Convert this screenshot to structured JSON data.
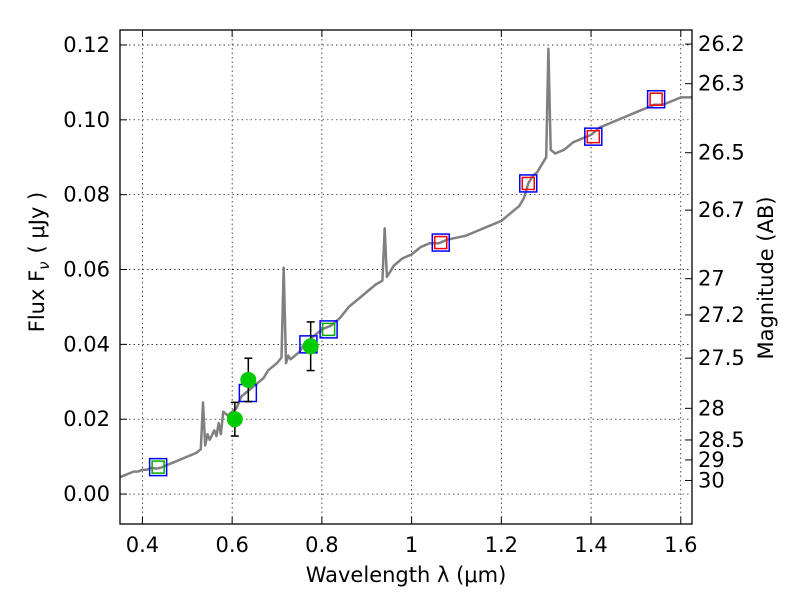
{
  "chart_data": {
    "type": "scatter",
    "xlabel": "Wavelength  λ (μm)",
    "ylabel": "Flux  F",
    "ylabel_sub": "ν",
    "ylabel_unit": "( μJy )",
    "y2label": "Magnitude (AB)",
    "xlim": [
      0.35,
      1.625
    ],
    "ylim": [
      -0.008,
      0.124
    ],
    "grid": true,
    "x_ticks": [
      {
        "value": 0.4,
        "label": "0.4"
      },
      {
        "value": 0.6,
        "label": "0.6"
      },
      {
        "value": 0.8,
        "label": "0.8"
      },
      {
        "value": 1.0,
        "label": "1"
      },
      {
        "value": 1.2,
        "label": "1.2"
      },
      {
        "value": 1.4,
        "label": "1.4"
      },
      {
        "value": 1.6,
        "label": "1.6"
      }
    ],
    "y_ticks": [
      {
        "value": 0.0,
        "label": "0.00"
      },
      {
        "value": 0.02,
        "label": "0.02"
      },
      {
        "value": 0.04,
        "label": "0.04"
      },
      {
        "value": 0.06,
        "label": "0.06"
      },
      {
        "value": 0.08,
        "label": "0.08"
      },
      {
        "value": 0.1,
        "label": "0.10"
      },
      {
        "value": 0.12,
        "label": "0.12"
      }
    ],
    "mag_ticks": [
      {
        "value": 26.2,
        "label": "26.2"
      },
      {
        "value": 26.3,
        "label": "26.3"
      },
      {
        "value": 26.5,
        "label": "26.5"
      },
      {
        "value": 26.7,
        "label": "26.7"
      },
      {
        "value": 27.0,
        "label": "27"
      },
      {
        "value": 27.2,
        "label": "27.2"
      },
      {
        "value": 27.5,
        "label": "27.5"
      },
      {
        "value": 28.0,
        "label": "28"
      },
      {
        "value": 28.5,
        "label": "28.5"
      },
      {
        "value": 29.0,
        "label": "29"
      },
      {
        "value": 30.0,
        "label": "30"
      }
    ],
    "series": [
      {
        "name": "model spectrum",
        "kind": "line",
        "color": "#808080",
        "x": [
          0.35,
          0.36,
          0.37,
          0.38,
          0.39,
          0.4,
          0.41,
          0.42,
          0.43,
          0.44,
          0.45,
          0.46,
          0.47,
          0.48,
          0.49,
          0.5,
          0.51,
          0.52,
          0.53,
          0.535,
          0.54,
          0.545,
          0.55,
          0.56,
          0.565,
          0.57,
          0.575,
          0.58,
          0.59,
          0.6,
          0.61,
          0.62,
          0.63,
          0.64,
          0.65,
          0.66,
          0.67,
          0.68,
          0.69,
          0.7,
          0.71,
          0.715,
          0.72,
          0.725,
          0.73,
          0.74,
          0.75,
          0.76,
          0.77,
          0.78,
          0.79,
          0.8,
          0.82,
          0.84,
          0.86,
          0.88,
          0.9,
          0.92,
          0.935,
          0.94,
          0.945,
          0.95,
          0.96,
          0.97,
          0.98,
          1.0,
          1.02,
          1.04,
          1.06,
          1.08,
          1.1,
          1.12,
          1.14,
          1.16,
          1.18,
          1.2,
          1.22,
          1.24,
          1.25,
          1.26,
          1.27,
          1.28,
          1.29,
          1.3,
          1.305,
          1.31,
          1.32,
          1.34,
          1.36,
          1.38,
          1.4,
          1.42,
          1.44,
          1.46,
          1.48,
          1.5,
          1.52,
          1.54,
          1.56,
          1.58,
          1.6,
          1.625
        ],
        "y": [
          0.0045,
          0.005,
          0.0055,
          0.006,
          0.006,
          0.0065,
          0.0065,
          0.007,
          0.0068,
          0.007,
          0.0075,
          0.008,
          0.0085,
          0.009,
          0.0095,
          0.01,
          0.0105,
          0.011,
          0.012,
          0.0245,
          0.013,
          0.016,
          0.0145,
          0.017,
          0.0155,
          0.019,
          0.016,
          0.022,
          0.021,
          0.022,
          0.023,
          0.026,
          0.027,
          0.028,
          0.029,
          0.03,
          0.031,
          0.033,
          0.034,
          0.035,
          0.0365,
          0.0605,
          0.035,
          0.037,
          0.036,
          0.037,
          0.038,
          0.04,
          0.041,
          0.042,
          0.043,
          0.044,
          0.045,
          0.047,
          0.05,
          0.052,
          0.054,
          0.056,
          0.057,
          0.071,
          0.058,
          0.059,
          0.061,
          0.062,
          0.063,
          0.064,
          0.066,
          0.067,
          0.067,
          0.068,
          0.0685,
          0.069,
          0.07,
          0.071,
          0.072,
          0.073,
          0.075,
          0.077,
          0.079,
          0.083,
          0.085,
          0.086,
          0.088,
          0.09,
          0.119,
          0.092,
          0.091,
          0.092,
          0.094,
          0.095,
          0.096,
          0.098,
          0.099,
          0.1,
          0.101,
          0.102,
          0.103,
          0.104,
          0.104,
          0.105,
          0.106,
          0.106
        ]
      },
      {
        "name": "blue squares",
        "kind": "square",
        "color": "#0000ff",
        "x": [
          0.435,
          0.635,
          0.77,
          0.815,
          1.065,
          1.26,
          1.405,
          1.545
        ],
        "y": [
          0.0072,
          0.027,
          0.04,
          0.044,
          0.0672,
          0.083,
          0.0955,
          0.1055
        ]
      },
      {
        "name": "green squares",
        "kind": "square",
        "color": "#00aa00",
        "x": [
          0.435,
          0.815
        ],
        "y": [
          0.0072,
          0.044
        ]
      },
      {
        "name": "red squares",
        "kind": "square",
        "color": "#ff0000",
        "x": [
          1.065,
          1.26,
          1.405,
          1.545
        ],
        "y": [
          0.0672,
          0.083,
          0.0955,
          0.1055
        ]
      },
      {
        "name": "observed photometry",
        "kind": "errorbar",
        "color": "#00cc00",
        "x": [
          0.606,
          0.636,
          0.775
        ],
        "y": [
          0.02,
          0.0305,
          0.0395
        ],
        "yerr": [
          0.0045,
          0.0058,
          0.0065
        ]
      }
    ]
  }
}
